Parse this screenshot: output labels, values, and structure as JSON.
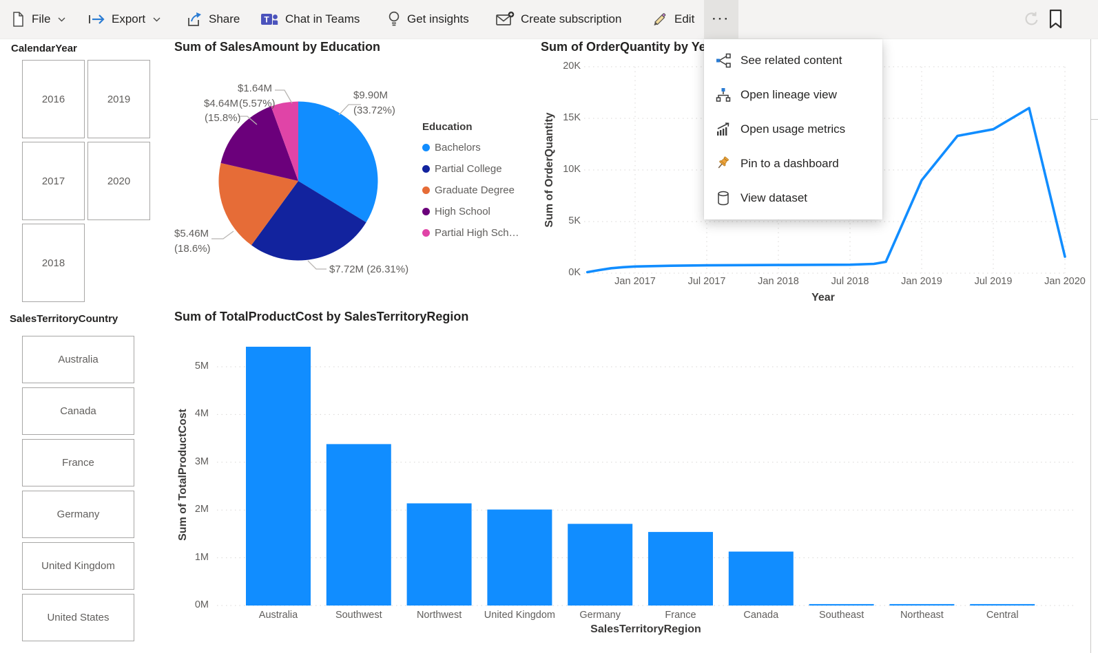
{
  "toolbar": {
    "file": {
      "label": "File"
    },
    "export": {
      "label": "Export"
    },
    "share": {
      "label": "Share"
    },
    "teams": {
      "label": "Chat in Teams"
    },
    "insights": {
      "label": "Get insights"
    },
    "subscription": {
      "label": "Create subscription"
    },
    "edit": {
      "label": "Edit"
    },
    "more": {
      "label": "···"
    }
  },
  "menu": {
    "items": [
      {
        "label": "See related content",
        "icon": "related-content-icon"
      },
      {
        "label": "Open lineage view",
        "icon": "lineage-icon"
      },
      {
        "label": "Open usage metrics",
        "icon": "usage-metrics-icon"
      },
      {
        "label": "Pin to a dashboard",
        "icon": "pin-icon"
      },
      {
        "label": "View dataset",
        "icon": "dataset-icon"
      }
    ]
  },
  "slicers": {
    "year": {
      "title": "CalendarYear",
      "options": [
        "2016",
        "2019",
        "2017",
        "2020",
        "2018"
      ]
    },
    "country": {
      "title": "SalesTerritoryCountry",
      "options": [
        "Australia",
        "Canada",
        "France",
        "Germany",
        "United Kingdom",
        "United States"
      ]
    }
  },
  "chart_data": [
    {
      "type": "pie",
      "title": "Sum of SalesAmount by Education",
      "legend_title": "Education",
      "legend_position": "right",
      "slices": [
        {
          "name": "Bachelors",
          "legend_label": "Bachelors",
          "value_label": "$9.90M",
          "pct_label": "(33.72%)",
          "value_millions": 9.9,
          "pct": 33.72,
          "color": "#118DFF"
        },
        {
          "name": "Partial College",
          "legend_label": "Partial College",
          "value_label": "$7.72M",
          "pct_label": "(26.31%)",
          "value_millions": 7.72,
          "pct": 26.31,
          "color": "#12239E"
        },
        {
          "name": "Graduate Degree",
          "legend_label": "Graduate Degree",
          "value_label": "$5.46M",
          "pct_label": "(18.6%)",
          "value_millions": 5.46,
          "pct": 18.6,
          "color": "#E66C37"
        },
        {
          "name": "High School",
          "legend_label": "High School",
          "value_label": "$4.64M",
          "pct_label": "(15.8%)",
          "value_millions": 4.64,
          "pct": 15.8,
          "color": "#6B007B"
        },
        {
          "name": "Partial High School",
          "legend_label": "Partial High Sch…",
          "value_label": "$1.64M",
          "pct_label": "(5.57%)",
          "value_millions": 1.64,
          "pct": 5.57,
          "color": "#E044A7"
        }
      ]
    },
    {
      "type": "line",
      "title": "Sum of OrderQuantity by Year",
      "xlabel": "Year",
      "ylabel": "Sum of OrderQuantity",
      "x_ticks": [
        "Jan 2017",
        "Jul 2017",
        "Jan 2018",
        "Jul 2018",
        "Jan 2019",
        "Jul 2019",
        "Jan 2020"
      ],
      "y_ticks": [
        "0K",
        "5K",
        "10K",
        "15K",
        "20K"
      ],
      "ylim": [
        0,
        20000
      ],
      "grid": true,
      "line_color": "#118DFF",
      "points": [
        {
          "month": "Sep 2016",
          "t": -4,
          "value": 100
        },
        {
          "month": "Oct 2016",
          "t": -3,
          "value": 300
        },
        {
          "month": "Nov 2016",
          "t": -2,
          "value": 480
        },
        {
          "month": "Dec 2016",
          "t": -1,
          "value": 580
        },
        {
          "month": "Jan 2017",
          "t": 0,
          "value": 650
        },
        {
          "month": "Apr 2017",
          "t": 3,
          "value": 720
        },
        {
          "month": "Jul 2017",
          "t": 6,
          "value": 760
        },
        {
          "month": "Jan 2018",
          "t": 12,
          "value": 790
        },
        {
          "month": "Jul 2018",
          "t": 18,
          "value": 820
        },
        {
          "month": "Sep 2018",
          "t": 20,
          "value": 900
        },
        {
          "month": "Oct 2018",
          "t": 21,
          "value": 1100
        },
        {
          "month": "Jan 2019",
          "t": 24,
          "value": 9000
        },
        {
          "month": "Apr 2019",
          "t": 27,
          "value": 13300
        },
        {
          "month": "Jul 2019",
          "t": 30,
          "value": 13950
        },
        {
          "month": "Oct 2019",
          "t": 33,
          "value": 16000
        },
        {
          "month": "Jan 2020",
          "t": 36,
          "value": 1600
        }
      ]
    },
    {
      "type": "bar",
      "title": "Sum of TotalProductCost by SalesTerritoryRegion",
      "xlabel": "SalesTerritoryRegion",
      "ylabel": "Sum of TotalProductCost",
      "y_ticks": [
        "0M",
        "1M",
        "2M",
        "3M",
        "4M",
        "5M"
      ],
      "ylim": [
        0,
        5500000
      ],
      "grid": true,
      "bar_color": "#118DFF",
      "categories": [
        "Australia",
        "Southwest",
        "Northwest",
        "United Kingdom",
        "Germany",
        "France",
        "Canada",
        "Southeast",
        "Northeast",
        "Central"
      ],
      "values_millions": [
        5.42,
        3.38,
        2.14,
        2.01,
        1.71,
        1.54,
        1.13,
        0.03,
        0.03,
        0.03
      ]
    }
  ]
}
